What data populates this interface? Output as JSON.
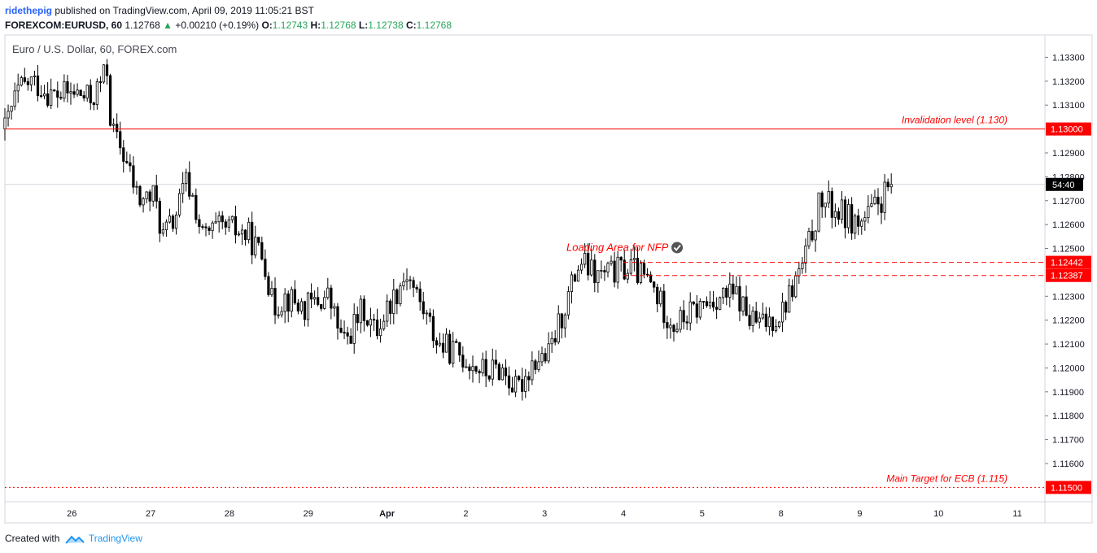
{
  "header": {
    "username": "ridethepig",
    "published_text": "published on TradingView.com, April 09, 2019 11:05:21 BST",
    "symbol": "FOREXCOM:EURUSD, 60",
    "last_price": "1.12768",
    "change": "+0.00210 (+0.19%)",
    "open_label": "O:",
    "open": "1.12743",
    "high_label": "H:",
    "high": "1.12768",
    "low_label": "L:",
    "low": "1.12738",
    "close_label": "C:",
    "close": "1.12768"
  },
  "footer": {
    "created_with": "Created with",
    "brand": "TradingView",
    "logo_icon": "tradingview-logo-icon"
  },
  "colors": {
    "candle_outline": "#000000",
    "candle_up_fill": "#ffffff",
    "candle_down_fill": "#000000",
    "level_line": "#ff0000",
    "badge_bg": "#ff0000",
    "badge_text": "#ffffff",
    "timer_bg": "#000000",
    "up_arrow": "#26a65b",
    "grid": "#e0e3eb"
  },
  "chart_data": {
    "type": "candlestick",
    "title": "Euro / U.S. Dollar, 60, FOREX.com",
    "ylim": [
      1.1144,
      1.1339
    ],
    "yticks": [
      "1.13300",
      "1.13200",
      "1.13100",
      "1.12900",
      "1.12800",
      "1.12700",
      "1.12600",
      "1.12500",
      "1.12300",
      "1.12200",
      "1.12100",
      "1.12000",
      "1.11900",
      "1.11800",
      "1.11700",
      "1.11600"
    ],
    "xticks": [
      {
        "label": "26",
        "x": 0.85
      },
      {
        "label": "27",
        "x": 1.85
      },
      {
        "label": "28",
        "x": 2.85
      },
      {
        "label": "29",
        "x": 3.85
      },
      {
        "label": "Apr",
        "x": 4.85
      },
      {
        "label": "2",
        "x": 5.85
      },
      {
        "label": "3",
        "x": 6.85
      },
      {
        "label": "4",
        "x": 7.85
      },
      {
        "label": "5",
        "x": 8.85
      },
      {
        "label": "8",
        "x": 9.85
      },
      {
        "label": "9",
        "x": 10.85
      },
      {
        "label": "10",
        "x": 11.85
      },
      {
        "label": "11",
        "x": 12.85
      }
    ],
    "xlim": [
      0,
      13.2
    ],
    "levels": [
      {
        "price": 1.13,
        "badge": "1.13000",
        "style": "solid",
        "label": "Invalidation level (1.130)"
      },
      {
        "price": 1.12442,
        "badge": "1.12442",
        "style": "dashed",
        "label": ""
      },
      {
        "price": 1.12387,
        "badge": "1.12387",
        "style": "dashed",
        "label": ""
      },
      {
        "price": 1.115,
        "badge": "1.11500",
        "style": "dotted",
        "label": "Main Target for ECB (1.115)"
      }
    ],
    "annotation": {
      "text": "Loading Area for NFP",
      "price": 1.1249,
      "x_start": 7.85,
      "x_end": 8.65
    },
    "last_price": 1.12768,
    "countdown": "54:40",
    "start_day": 0,
    "anchors": [
      [
        0.0,
        1.13
      ],
      [
        0.15,
        1.1315
      ],
      [
        0.32,
        1.132
      ],
      [
        0.45,
        1.1318
      ],
      [
        0.6,
        1.1314
      ],
      [
        0.9,
        1.1315
      ],
      [
        1.1,
        1.1312
      ],
      [
        1.3,
        1.1325
      ],
      [
        1.35,
        1.13
      ],
      [
        1.5,
        1.129
      ],
      [
        1.7,
        1.127
      ],
      [
        1.9,
        1.1272
      ],
      [
        2.0,
        1.1255
      ],
      [
        2.15,
        1.1262
      ],
      [
        2.3,
        1.1278
      ],
      [
        2.4,
        1.127
      ],
      [
        2.5,
        1.1255
      ],
      [
        2.7,
        1.1258
      ],
      [
        2.9,
        1.1258
      ],
      [
        3.1,
        1.1255
      ],
      [
        3.3,
        1.1245
      ],
      [
        3.4,
        1.1225
      ],
      [
        3.55,
        1.123
      ],
      [
        3.8,
        1.1225
      ],
      [
        4.1,
        1.123
      ],
      [
        4.3,
        1.121
      ],
      [
        4.55,
        1.1225
      ],
      [
        4.7,
        1.1215
      ],
      [
        4.9,
        1.1228
      ],
      [
        5.1,
        1.124
      ],
      [
        5.3,
        1.1225
      ],
      [
        5.5,
        1.121
      ],
      [
        5.8,
        1.1205
      ],
      [
        6.1,
        1.1198
      ],
      [
        6.3,
        1.12
      ],
      [
        6.5,
        1.119
      ],
      [
        6.7,
        1.1203
      ],
      [
        6.9,
        1.1205
      ],
      [
        7.1,
        1.1225
      ],
      [
        7.3,
        1.1245
      ],
      [
        7.5,
        1.1238
      ],
      [
        7.7,
        1.124
      ],
      [
        7.95,
        1.1242
      ],
      [
        8.2,
        1.1235
      ],
      [
        8.35,
        1.1225
      ],
      [
        8.5,
        1.1218
      ],
      [
        8.8,
        1.1225
      ],
      [
        9.05,
        1.123
      ],
      [
        9.3,
        1.123
      ],
      [
        9.45,
        1.122
      ],
      [
        9.6,
        1.1218
      ],
      [
        9.85,
        1.1223
      ],
      [
        10.15,
        1.1245
      ],
      [
        10.35,
        1.127
      ],
      [
        10.6,
        1.1265
      ],
      [
        10.85,
        1.126
      ],
      [
        11.0,
        1.1265
      ],
      [
        11.25,
        1.1276
      ]
    ]
  }
}
